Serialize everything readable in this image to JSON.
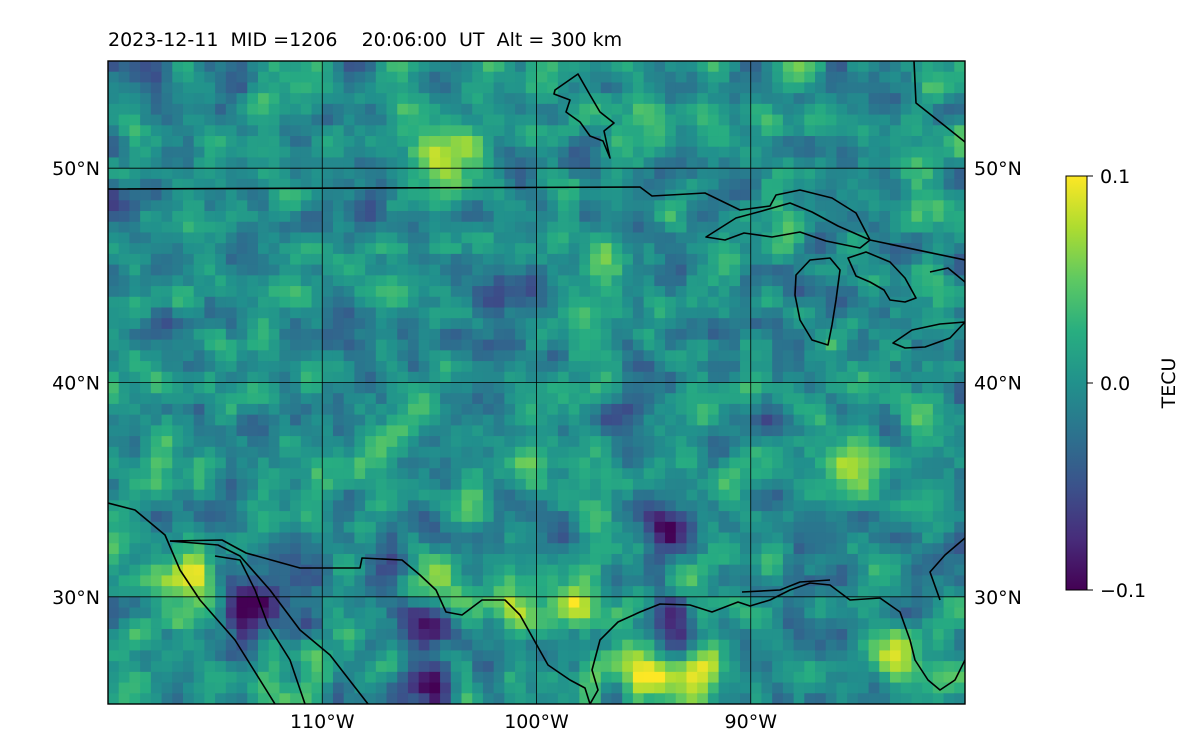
{
  "title": "2023-12-11  MID =1206    20:06:00  UT  Alt = 300 km",
  "chart_data": {
    "type": "heatmap",
    "title": "2023-12-11  MID =1206    20:06:00  UT  Alt = 300 km",
    "xlabel": "",
    "ylabel": "",
    "xlim": [
      -120,
      -80
    ],
    "ylim": [
      25,
      55
    ],
    "x_ticks": [
      -110,
      -100,
      -90
    ],
    "x_tick_labels": [
      "110°W",
      "100°W",
      "90°W"
    ],
    "y_ticks": [
      30,
      40,
      50
    ],
    "y_tick_labels": [
      "30°N",
      "40°N",
      "50°N"
    ],
    "grid": true,
    "colormap": "viridis",
    "colorbar": {
      "label": "TECU",
      "range": [
        -0.1,
        0.1
      ],
      "ticks": [
        0.1,
        0.0,
        -0.1
      ],
      "tick_labels": [
        "0.1",
        "0.0",
        "−0.1"
      ]
    },
    "grid_resolution_deg": [
      0.5,
      0.5
    ],
    "hotspots": [
      {
        "lon": -116.5,
        "lat": 30.7,
        "value": 0.1
      },
      {
        "lon": -104,
        "lat": 50.3,
        "value": 0.08
      },
      {
        "lon": -95,
        "lat": 26.5,
        "value": 0.1
      },
      {
        "lon": -92.5,
        "lat": 26.8,
        "value": 0.09
      },
      {
        "lon": -98,
        "lat": 29.8,
        "value": 0.09
      },
      {
        "lon": -85,
        "lat": 36.5,
        "value": 0.07
      },
      {
        "lon": -97,
        "lat": 45.5,
        "value": 0.07
      },
      {
        "lon": -83,
        "lat": 27,
        "value": 0.07
      },
      {
        "lon": -104.5,
        "lat": 30.6,
        "value": 0.07
      },
      {
        "lon": -101,
        "lat": 29.7,
        "value": 0.07
      },
      {
        "lon": -113.5,
        "lat": 29.5,
        "value": -0.09
      },
      {
        "lon": -105,
        "lat": 25.8,
        "value": -0.1
      },
      {
        "lon": -105,
        "lat": 29.3,
        "value": -0.09
      },
      {
        "lon": -93.5,
        "lat": 28.2,
        "value": -0.09
      },
      {
        "lon": -102,
        "lat": 44,
        "value": -0.07
      },
      {
        "lon": -94,
        "lat": 33,
        "value": -0.07
      }
    ]
  },
  "colors": {
    "map_outline": "#000000",
    "grid": "#000000",
    "colormap_low": "#440154",
    "colormap_mid": "#21908d",
    "colormap_high": "#fde725"
  }
}
